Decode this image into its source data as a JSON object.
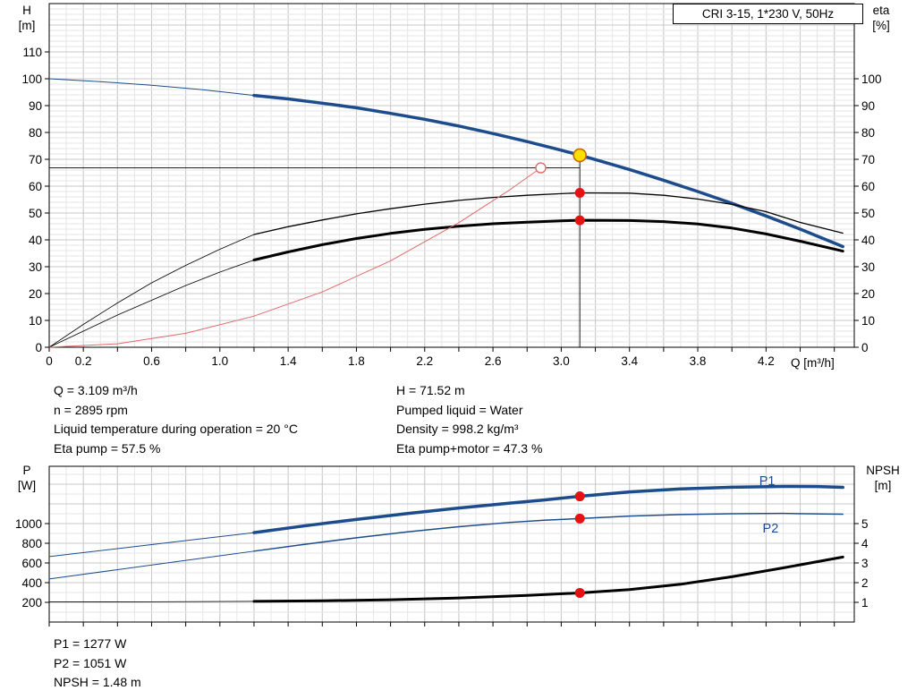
{
  "title_box": "CRI 3-15, 1*230 V, 50Hz",
  "colors": {
    "curve_blue": "#1c4c8c",
    "curve_black": "#000000",
    "curve_red": "#e06a6a",
    "marker_red": "#e81010",
    "marker_yellow": "#ffdf00",
    "marker_yellow_ring": "#cc6600",
    "grid_minor": "#e6e6e6",
    "grid_major": "#c8c8c8",
    "label_blue": "#1c4c8c"
  },
  "info_top": {
    "rows": [
      {
        "left": "Q = 3.109 m³/h",
        "right": "H = 71.52 m"
      },
      {
        "left": "n = 2895 rpm",
        "right": "Pumped liquid = Water"
      },
      {
        "left": "Liquid temperature during operation = 20 °C",
        "right": "Density = 998.2 kg/m³"
      },
      {
        "left": "Eta pump = 57.5 %",
        "right": "Eta pump+motor = 47.3 %"
      }
    ]
  },
  "info_bottom": [
    "P1 = 1277 W",
    "P2 = 1051 W",
    "NPSH = 1.48 m"
  ],
  "chart_data": [
    {
      "type": "line",
      "name": "qh-eta-chart",
      "title": "CRI 3-15, 1*230 V, 50Hz",
      "x": {
        "label": "Q [m³/h]",
        "min": 0,
        "max": 4.717,
        "minor_step": 0.1,
        "tick_step": 0.2,
        "tick_values": [
          0,
          0.2,
          0.6,
          1,
          1.4,
          1.8,
          2.2,
          2.6,
          3,
          3.4,
          3.8,
          4.2
        ],
        "tick_labels": [
          "0",
          "0.2",
          "0.6",
          "1.0",
          "1.4",
          "1.8",
          "2.2",
          "2.6",
          "3.0",
          "3.4",
          "3.8",
          "4.2"
        ]
      },
      "y_left": {
        "label": "H",
        "unit": "[m]",
        "min": 0,
        "max": 128,
        "minor_step": 2,
        "major_step": 10,
        "ticks": [
          0,
          10,
          20,
          30,
          40,
          50,
          60,
          70,
          80,
          90,
          100,
          110
        ]
      },
      "y_right": {
        "label": "eta",
        "unit": "[%]",
        "min": 0,
        "max": 128,
        "minor_step": 2,
        "major_step": 10,
        "ticks": [
          0,
          10,
          20,
          30,
          40,
          50,
          60,
          70,
          80,
          90,
          100
        ]
      },
      "series": [
        {
          "name": "qh-curve-extension",
          "axis": "left",
          "color": "#1c4c8c",
          "width": 1,
          "points": [
            [
              0,
              100
            ],
            [
              0.3,
              98.9
            ],
            [
              0.6,
              97.6
            ],
            [
              0.9,
              95.9
            ],
            [
              1.2,
              93.8
            ]
          ]
        },
        {
          "name": "qh-curve",
          "axis": "left",
          "color": "#1c4c8c",
          "width": 3.5,
          "points": [
            [
              1.2,
              93.8
            ],
            [
              1.4,
              92.5
            ],
            [
              1.6,
              90.9
            ],
            [
              1.8,
              89.2
            ],
            [
              2,
              87.1
            ],
            [
              2.2,
              84.9
            ],
            [
              2.4,
              82.4
            ],
            [
              2.6,
              79.6
            ],
            [
              2.8,
              76.6
            ],
            [
              3,
              73.4
            ],
            [
              3.109,
              71.52
            ],
            [
              3.2,
              69.9
            ],
            [
              3.4,
              66.2
            ],
            [
              3.6,
              62.2
            ],
            [
              3.8,
              58
            ],
            [
              4,
              53.6
            ],
            [
              4.2,
              48.9
            ],
            [
              4.4,
              44
            ],
            [
              4.65,
              37.5
            ]
          ]
        },
        {
          "name": "eta-pump-extension",
          "axis": "right",
          "color": "#000000",
          "width": 0.8,
          "points": [
            [
              0,
              0
            ],
            [
              0.2,
              8.5
            ],
            [
              0.4,
              16.5
            ],
            [
              0.6,
              24
            ],
            [
              0.8,
              30.5
            ],
            [
              1,
              36.5
            ],
            [
              1.2,
              42
            ]
          ]
        },
        {
          "name": "eta-pump-curve",
          "axis": "right",
          "color": "#000000",
          "width": 1.3,
          "points": [
            [
              1.2,
              42
            ],
            [
              1.4,
              44.9
            ],
            [
              1.6,
              47.4
            ],
            [
              1.8,
              49.7
            ],
            [
              2,
              51.6
            ],
            [
              2.2,
              53.3
            ],
            [
              2.4,
              54.7
            ],
            [
              2.6,
              55.8
            ],
            [
              2.8,
              56.6
            ],
            [
              3,
              57.2
            ],
            [
              3.109,
              57.5
            ],
            [
              3.4,
              57.4
            ],
            [
              3.6,
              56.6
            ],
            [
              3.8,
              55.2
            ],
            [
              4,
              53.2
            ],
            [
              4.2,
              50.5
            ],
            [
              4.4,
              46.5
            ],
            [
              4.65,
              42.5
            ]
          ]
        },
        {
          "name": "eta-pump-motor-extension",
          "axis": "right",
          "color": "#000000",
          "width": 0.8,
          "points": [
            [
              0,
              0
            ],
            [
              0.2,
              6
            ],
            [
              0.4,
              12
            ],
            [
              0.6,
              17.5
            ],
            [
              0.8,
              23
            ],
            [
              1,
              28
            ],
            [
              1.2,
              32.5
            ]
          ]
        },
        {
          "name": "eta-pump-motor-curve",
          "axis": "right",
          "color": "#000000",
          "width": 3,
          "points": [
            [
              1.2,
              32.5
            ],
            [
              1.4,
              35.5
            ],
            [
              1.6,
              38.2
            ],
            [
              1.8,
              40.5
            ],
            [
              2,
              42.4
            ],
            [
              2.2,
              43.9
            ],
            [
              2.4,
              45.1
            ],
            [
              2.6,
              46
            ],
            [
              2.8,
              46.6
            ],
            [
              3,
              47.1
            ],
            [
              3.109,
              47.3
            ],
            [
              3.4,
              47.2
            ],
            [
              3.6,
              46.8
            ],
            [
              3.8,
              45.9
            ],
            [
              4,
              44.4
            ],
            [
              4.2,
              42.2
            ],
            [
              4.4,
              39.5
            ],
            [
              4.65,
              35.8
            ]
          ]
        },
        {
          "name": "system-curve",
          "axis": "left",
          "color": "#e06a6a",
          "width": 1,
          "points": [
            [
              0,
              0
            ],
            [
              0.4,
              1.3
            ],
            [
              0.8,
              5.2
            ],
            [
              1.2,
              11.6
            ],
            [
              1.6,
              20.6
            ],
            [
              2,
              32.2
            ],
            [
              2.4,
              46.4
            ],
            [
              2.7,
              58.7
            ],
            [
              2.88,
              66.8
            ]
          ]
        }
      ],
      "guides": [
        {
          "name": "duty-head-guide-line",
          "axis": "left",
          "x1": 0,
          "y1": 66.8,
          "x2": 3.109,
          "y2": 66.8
        },
        {
          "name": "duty-flow-guide-line",
          "axis": "left",
          "x1": 3.109,
          "y1": 0,
          "x2": 3.109,
          "y2": 71.52
        }
      ],
      "markers": [
        {
          "name": "system-intersection-ring",
          "axis": "left",
          "x": 2.88,
          "y": 66.8,
          "r": 5.5,
          "fill": "#ffffff",
          "stroke": "#e06a6a",
          "sw": 1.4
        },
        {
          "name": "duty-point-qh",
          "axis": "left",
          "x": 3.109,
          "y": 71.52,
          "r": 7,
          "fill": "#ffdf00",
          "stroke": "#cc6600",
          "sw": 1.6
        },
        {
          "name": "duty-point-eta-pump",
          "axis": "right",
          "x": 3.109,
          "y": 57.5,
          "r": 5.5,
          "fill": "#e81010",
          "stroke": "none",
          "sw": 0
        },
        {
          "name": "duty-point-eta-pump-motor",
          "axis": "right",
          "x": 3.109,
          "y": 47.3,
          "r": 5.5,
          "fill": "#e81010",
          "stroke": "none",
          "sw": 0
        }
      ],
      "labels": []
    },
    {
      "type": "line",
      "name": "power-npsh-chart",
      "title": "",
      "x": {
        "label": "",
        "min": 0,
        "max": 4.717,
        "minor_step": 0.1,
        "tick_step": 0.2,
        "tick_values": [],
        "tick_labels": []
      },
      "y_left": {
        "label": "P",
        "unit": "[W]",
        "min": 0,
        "max": 1582,
        "minor_step": 100,
        "major_step": 200,
        "ticks": [
          200,
          400,
          600,
          800,
          1000
        ]
      },
      "y_right": {
        "label": "NPSH",
        "unit": "[m]",
        "min": 0,
        "max": 7.91,
        "minor_step": 1,
        "major_step": 1,
        "ticks": [
          1,
          2,
          3,
          4,
          5
        ]
      },
      "series": [
        {
          "name": "p1-curve-extension",
          "axis": "left",
          "color": "#1c4c8c",
          "width": 1,
          "points": [
            [
              0,
              665
            ],
            [
              0.4,
              746
            ],
            [
              0.8,
              827
            ],
            [
              1.2,
              908
            ]
          ]
        },
        {
          "name": "p1-curve",
          "axis": "left",
          "color": "#1c4c8c",
          "width": 3.5,
          "points": [
            [
              1.2,
              908
            ],
            [
              1.5,
              978
            ],
            [
              1.8,
              1042
            ],
            [
              2.1,
              1102
            ],
            [
              2.4,
              1158
            ],
            [
              2.7,
              1208
            ],
            [
              2.9,
              1240
            ],
            [
              3.109,
              1277
            ],
            [
              3.4,
              1322
            ],
            [
              3.7,
              1352
            ],
            [
              4,
              1370
            ],
            [
              4.3,
              1378
            ],
            [
              4.5,
              1376
            ],
            [
              4.65,
              1368
            ]
          ]
        },
        {
          "name": "p2-curve-extension",
          "axis": "left",
          "color": "#1c4c8c",
          "width": 1,
          "points": [
            [
              0,
              438
            ],
            [
              0.4,
              532
            ],
            [
              0.8,
              626
            ],
            [
              1.2,
              720
            ]
          ]
        },
        {
          "name": "p2-curve",
          "axis": "left",
          "color": "#1c4c8c",
          "width": 1.5,
          "points": [
            [
              1.2,
              720
            ],
            [
              1.5,
              790
            ],
            [
              1.8,
              856
            ],
            [
              2.1,
              916
            ],
            [
              2.4,
              968
            ],
            [
              2.7,
              1012
            ],
            [
              2.9,
              1034
            ],
            [
              3.109,
              1051
            ],
            [
              3.4,
              1076
            ],
            [
              3.7,
              1092
            ],
            [
              4,
              1100
            ],
            [
              4.3,
              1103
            ],
            [
              4.65,
              1096
            ]
          ]
        },
        {
          "name": "npsh-curve-extension",
          "axis": "right",
          "color": "#000000",
          "width": 0.8,
          "points": [
            [
              0,
              1.02
            ],
            [
              0.6,
              1.03
            ],
            [
              1.2,
              1.05
            ]
          ]
        },
        {
          "name": "npsh-curve",
          "axis": "right",
          "color": "#000000",
          "width": 3,
          "points": [
            [
              1.2,
              1.05
            ],
            [
              1.6,
              1.08
            ],
            [
              2,
              1.13
            ],
            [
              2.4,
              1.22
            ],
            [
              2.8,
              1.35
            ],
            [
              3.109,
              1.48
            ],
            [
              3.4,
              1.65
            ],
            [
              3.7,
              1.92
            ],
            [
              4,
              2.3
            ],
            [
              4.3,
              2.75
            ],
            [
              4.65,
              3.3
            ]
          ]
        }
      ],
      "guides": [],
      "markers": [
        {
          "name": "duty-point-p1",
          "axis": "left",
          "x": 3.109,
          "y": 1277,
          "r": 5.5,
          "fill": "#e81010",
          "stroke": "none",
          "sw": 0
        },
        {
          "name": "duty-point-p2",
          "axis": "left",
          "x": 3.109,
          "y": 1051,
          "r": 5.5,
          "fill": "#e81010",
          "stroke": "none",
          "sw": 0
        },
        {
          "name": "duty-point-npsh",
          "axis": "right",
          "x": 3.109,
          "y": 1.48,
          "r": 5.5,
          "fill": "#e81010",
          "stroke": "none",
          "sw": 0
        }
      ],
      "labels": [
        {
          "name": "p1-series-label",
          "text": "P1",
          "axis": "left",
          "x": 4.16,
          "y": 1390,
          "color": "#1c4c8c"
        },
        {
          "name": "p2-series-label",
          "text": "P2",
          "axis": "left",
          "x": 4.18,
          "y": 910,
          "color": "#1c4c8c"
        }
      ]
    }
  ]
}
